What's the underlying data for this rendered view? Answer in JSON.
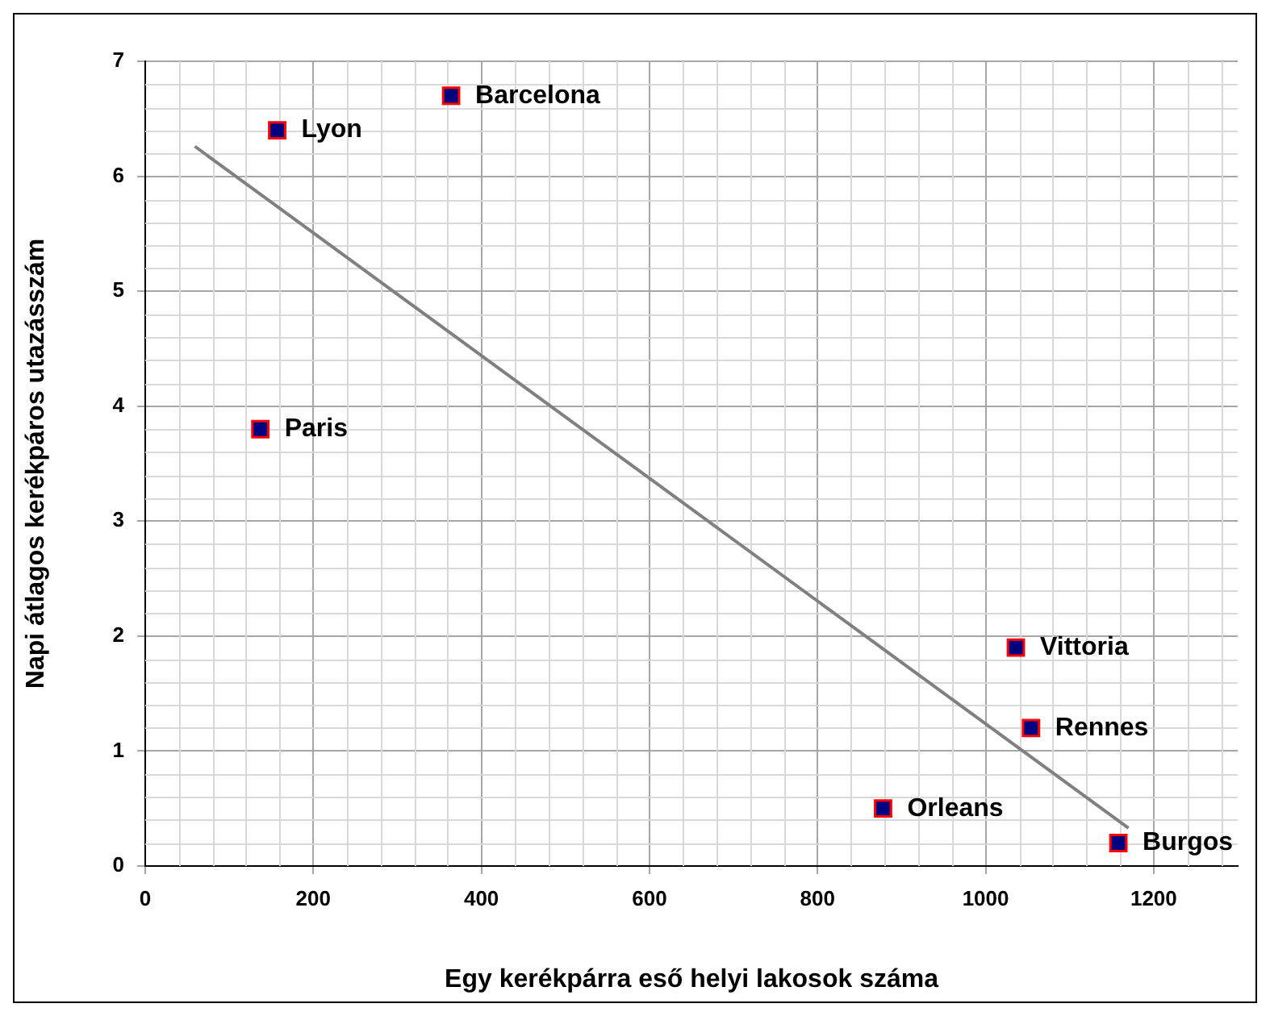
{
  "chart_data": {
    "type": "scatter",
    "xlabel": "Egy kerékpárra eső helyi lakosok száma",
    "ylabel": "Napi átlagos kerékpáros utazásszám",
    "xlim": [
      0,
      1300
    ],
    "xticks": [
      0,
      200,
      400,
      600,
      800,
      1000,
      1200
    ],
    "ylim": [
      0,
      7
    ],
    "yticks": [
      0,
      1,
      2,
      3,
      4,
      5,
      6,
      7
    ],
    "grid": true,
    "legend": false,
    "marker": "square",
    "series": [
      {
        "type": "scatter",
        "color": "#000080",
        "x": [
          157,
          364,
          137,
          1036,
          1054,
          878,
          1158
        ],
        "values": [
          6.4,
          6.7,
          3.8,
          1.9,
          1.2,
          0.5,
          0.2
        ]
      },
      {
        "type": "line",
        "color": "#808080",
        "line_style": "solid",
        "marker": "none",
        "x": [
          59,
          1170
        ],
        "values": [
          6.26,
          0.33
        ]
      }
    ],
    "annotations": [
      {
        "text": "Lyon",
        "x": 157,
        "y": 6.4
      },
      {
        "text": "Barcelona",
        "x": 364,
        "y": 6.7
      },
      {
        "text": "Paris",
        "x": 137,
        "y": 3.8
      },
      {
        "text": "Vittoria",
        "x": 1036,
        "y": 1.9
      },
      {
        "text": "Rennes",
        "x": 1054,
        "y": 1.2
      },
      {
        "text": "Orleans",
        "x": 878,
        "y": 0.5
      },
      {
        "text": "Burgos",
        "x": 1158,
        "y": 0.2
      }
    ]
  }
}
